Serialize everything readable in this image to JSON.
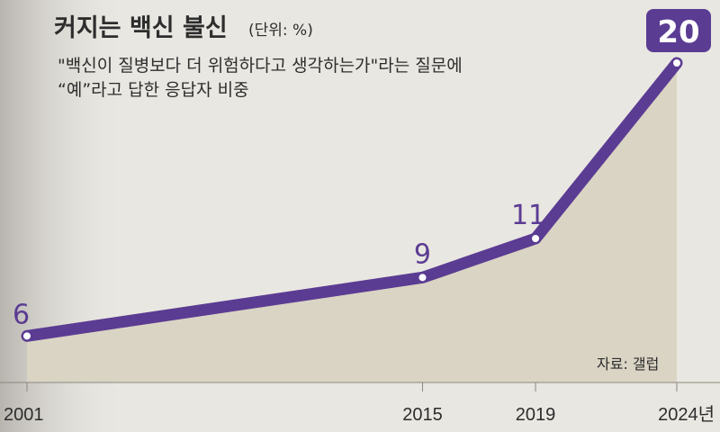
{
  "title": "커지는 백신 불신",
  "unit": "(단위: %)",
  "subtitle_lines": [
    "\"백신이 질병보다 더 위험하다고 생각하는가\"라는 질문에",
    "“예”라고 답한 응답자 비중"
  ],
  "source": "자료: 갤럽",
  "colors": {
    "line": "#5b3c93",
    "area": "#dad4c4",
    "background": "#e9e7e1",
    "badge": "#5b3c93"
  },
  "chart_data": {
    "type": "line",
    "x": [
      2001,
      2015,
      2019,
      2024
    ],
    "x_tick_labels": [
      "2001",
      "2015",
      "2019",
      "2024년"
    ],
    "values": [
      6,
      9,
      11,
      20
    ],
    "data_labels": [
      "6",
      "9",
      "11",
      "20"
    ],
    "grid": false,
    "legend": "none"
  }
}
